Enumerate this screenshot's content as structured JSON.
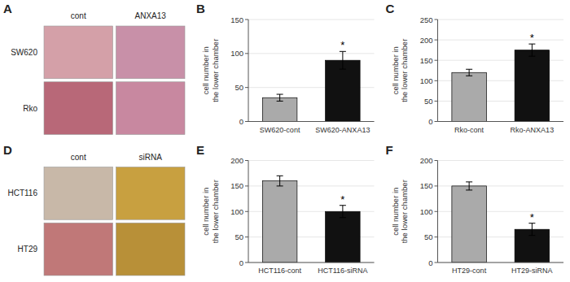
{
  "chart_data": [
    {
      "type": "image_grid",
      "title": "A",
      "categories": [
        "cont",
        "ANXA13"
      ],
      "series": [
        {
          "name": "SW620",
          "colors": [
            "#d4a0a8",
            "#c890a8"
          ]
        },
        {
          "name": "Rko",
          "colors": [
            "#b86878",
            "#c888a0"
          ]
        }
      ]
    },
    {
      "type": "bar",
      "title": "B",
      "ylabel": "cell number in\nthe lower chamber",
      "categories": [
        "SW620-cont",
        "SW620-ANXA13"
      ],
      "values": [
        35,
        90
      ],
      "errors": [
        5,
        13
      ],
      "colors": [
        "#aaaaaa",
        "#111111"
      ],
      "ylim": [
        0,
        150
      ],
      "yticks": [
        0,
        50,
        100,
        150
      ],
      "annotations": [
        {
          "text": "*",
          "category": "SW620-ANXA13"
        }
      ]
    },
    {
      "type": "bar",
      "title": "C",
      "ylabel": "cell number in\nthe lower chamber",
      "categories": [
        "Rko-cont",
        "Rko-ANXA13"
      ],
      "values": [
        120,
        175
      ],
      "errors": [
        8,
        15
      ],
      "colors": [
        "#aaaaaa",
        "#111111"
      ],
      "ylim": [
        0,
        250
      ],
      "yticks": [
        0,
        50,
        100,
        150,
        200,
        250
      ],
      "annotations": [
        {
          "text": "*",
          "category": "Rko-ANXA13"
        }
      ]
    },
    {
      "type": "image_grid",
      "title": "D",
      "categories": [
        "cont",
        "siRNA"
      ],
      "series": [
        {
          "name": "HCT116",
          "colors": [
            "#c8b8a8",
            "#c8a040"
          ]
        },
        {
          "name": "HT29",
          "colors": [
            "#c07878",
            "#b89038"
          ]
        }
      ]
    },
    {
      "type": "bar",
      "title": "E",
      "ylabel": "cell number in\nthe lower chamber",
      "categories": [
        "HCT116-cont",
        "HCT116-siRNA"
      ],
      "values": [
        160,
        100
      ],
      "errors": [
        10,
        12
      ],
      "colors": [
        "#aaaaaa",
        "#111111"
      ],
      "ylim": [
        0,
        200
      ],
      "yticks": [
        0,
        50,
        100,
        150,
        200
      ],
      "annotations": [
        {
          "text": "*",
          "category": "HCT116-siRNA"
        }
      ]
    },
    {
      "type": "bar",
      "title": "F",
      "ylabel": "cell number in\nthe lower chamber",
      "categories": [
        "HT29-cont",
        "HT29-siRNA"
      ],
      "values": [
        150,
        65
      ],
      "errors": [
        8,
        12
      ],
      "colors": [
        "#aaaaaa",
        "#111111"
      ],
      "ylim": [
        0,
        200
      ],
      "yticks": [
        0,
        50,
        100,
        150,
        200
      ],
      "annotations": [
        {
          "text": "*",
          "category": "HT29-siRNA"
        }
      ]
    }
  ]
}
